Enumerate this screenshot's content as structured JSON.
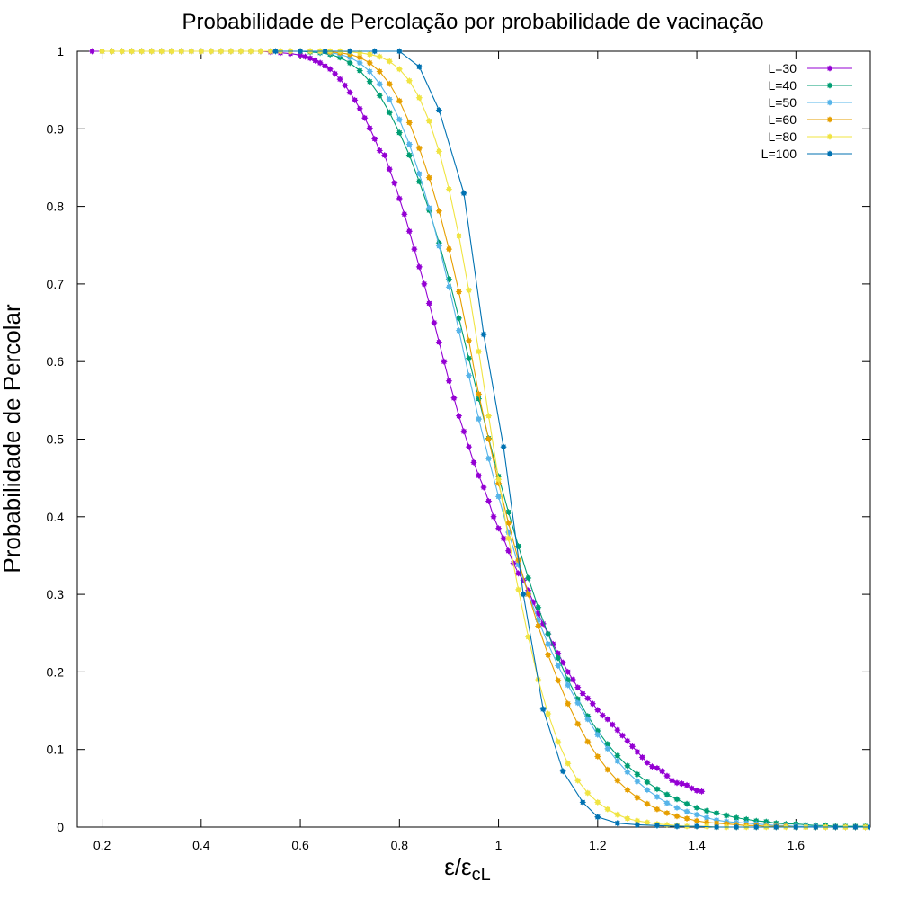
{
  "chart_data": {
    "type": "line",
    "title": "Probabilidade de Percolação por probabilidade de vacinação",
    "xlabel": "ε/ε",
    "xlabel_subscript": "cL",
    "ylabel": "Probabilidade de Percolar",
    "xlim": [
      0.15,
      1.75
    ],
    "ylim": [
      0,
      1
    ],
    "xticks": [
      "0.2",
      "0.4",
      "0.6",
      "0.8",
      "1",
      "1.2",
      "1.4",
      "1.6"
    ],
    "yticks": [
      "0",
      "0.1",
      "0.2",
      "0.3",
      "0.4",
      "0.5",
      "0.6",
      "0.7",
      "0.8",
      "0.9",
      "1"
    ],
    "grid": false,
    "legend_position": "top-right",
    "series": [
      {
        "name": "L=30",
        "color": "#9400d3",
        "x": [
          0.18,
          0.2,
          0.22,
          0.24,
          0.26,
          0.28,
          0.3,
          0.32,
          0.34,
          0.36,
          0.38,
          0.4,
          0.42,
          0.44,
          0.46,
          0.48,
          0.5,
          0.52,
          0.54,
          0.56,
          0.58,
          0.6,
          0.61,
          0.62,
          0.63,
          0.64,
          0.65,
          0.66,
          0.67,
          0.68,
          0.69,
          0.7,
          0.71,
          0.72,
          0.73,
          0.74,
          0.75,
          0.76,
          0.77,
          0.78,
          0.79,
          0.8,
          0.81,
          0.82,
          0.83,
          0.84,
          0.85,
          0.86,
          0.87,
          0.88,
          0.89,
          0.9,
          0.91,
          0.92,
          0.93,
          0.94,
          0.95,
          0.96,
          0.97,
          0.98,
          0.99,
          1.0,
          1.01,
          1.02,
          1.03,
          1.04,
          1.05,
          1.06,
          1.07,
          1.08,
          1.09,
          1.1,
          1.11,
          1.12,
          1.13,
          1.14,
          1.15,
          1.16,
          1.17,
          1.18,
          1.19,
          1.2,
          1.21,
          1.22,
          1.23,
          1.24,
          1.25,
          1.26,
          1.27,
          1.28,
          1.29,
          1.3,
          1.31,
          1.32,
          1.33,
          1.34,
          1.35,
          1.36,
          1.37,
          1.38,
          1.39,
          1.4,
          1.41
        ],
        "y": [
          1,
          1,
          1,
          1,
          1,
          1,
          1,
          1,
          1,
          1,
          1,
          1,
          1,
          1,
          1,
          1,
          1,
          1,
          0.999,
          0.998,
          0.997,
          0.995,
          0.993,
          0.991,
          0.988,
          0.985,
          0.981,
          0.977,
          0.971,
          0.964,
          0.956,
          0.947,
          0.937,
          0.926,
          0.914,
          0.901,
          0.887,
          0.872,
          0.866,
          0.848,
          0.83,
          0.81,
          0.79,
          0.768,
          0.745,
          0.722,
          0.7,
          0.675,
          0.65,
          0.625,
          0.6,
          0.575,
          0.553,
          0.53,
          0.51,
          0.49,
          0.47,
          0.453,
          0.438,
          0.42,
          0.4,
          0.385,
          0.372,
          0.356,
          0.34,
          0.327,
          0.318,
          0.305,
          0.29,
          0.275,
          0.262,
          0.249,
          0.236,
          0.224,
          0.212,
          0.2,
          0.19,
          0.18,
          0.172,
          0.166,
          0.159,
          0.151,
          0.144,
          0.139,
          0.132,
          0.125,
          0.118,
          0.111,
          0.104,
          0.097,
          0.09,
          0.083,
          0.078,
          0.076,
          0.072,
          0.066,
          0.06,
          0.057,
          0.056,
          0.054,
          0.05,
          0.047,
          0.046
        ]
      },
      {
        "name": "L=40",
        "color": "#009e73",
        "x": [
          0.2,
          0.22,
          0.24,
          0.26,
          0.28,
          0.3,
          0.32,
          0.34,
          0.36,
          0.38,
          0.4,
          0.42,
          0.44,
          0.46,
          0.48,
          0.5,
          0.52,
          0.54,
          0.56,
          0.58,
          0.6,
          0.62,
          0.64,
          0.66,
          0.68,
          0.7,
          0.72,
          0.74,
          0.76,
          0.78,
          0.8,
          0.82,
          0.84,
          0.86,
          0.88,
          0.9,
          0.92,
          0.94,
          0.96,
          0.98,
          1.0,
          1.02,
          1.04,
          1.06,
          1.08,
          1.1,
          1.12,
          1.14,
          1.16,
          1.18,
          1.2,
          1.22,
          1.24,
          1.26,
          1.28,
          1.3,
          1.32,
          1.34,
          1.36,
          1.38,
          1.4,
          1.42,
          1.44,
          1.46,
          1.48,
          1.5,
          1.52,
          1.54,
          1.56,
          1.58,
          1.6,
          1.62,
          1.64,
          1.66,
          1.68,
          1.7,
          1.72,
          1.74
        ],
        "y": [
          1,
          1,
          1,
          1,
          1,
          1,
          1,
          1,
          1,
          1,
          1,
          1,
          1,
          1,
          1,
          1,
          1,
          1,
          1,
          1,
          1,
          0.999,
          0.998,
          0.996,
          0.992,
          0.985,
          0.975,
          0.961,
          0.943,
          0.921,
          0.895,
          0.866,
          0.832,
          0.795,
          0.753,
          0.706,
          0.656,
          0.604,
          0.552,
          0.501,
          0.452,
          0.406,
          0.362,
          0.321,
          0.283,
          0.249,
          0.218,
          0.19,
          0.165,
          0.143,
          0.124,
          0.107,
          0.092,
          0.079,
          0.068,
          0.058,
          0.049,
          0.042,
          0.036,
          0.03,
          0.025,
          0.021,
          0.018,
          0.015,
          0.012,
          0.01,
          0.008,
          0.007,
          0.005,
          0.004,
          0.004,
          0.003,
          0.002,
          0.002,
          0.001,
          0.001,
          0.001,
          0.001
        ]
      },
      {
        "name": "L=50",
        "color": "#56b4e9",
        "x": [
          0.2,
          0.22,
          0.24,
          0.26,
          0.28,
          0.3,
          0.32,
          0.34,
          0.36,
          0.38,
          0.4,
          0.42,
          0.44,
          0.46,
          0.48,
          0.5,
          0.52,
          0.54,
          0.56,
          0.58,
          0.6,
          0.62,
          0.64,
          0.66,
          0.68,
          0.7,
          0.72,
          0.74,
          0.76,
          0.78,
          0.8,
          0.82,
          0.84,
          0.86,
          0.88,
          0.9,
          0.92,
          0.94,
          0.96,
          0.98,
          1.0,
          1.02,
          1.04,
          1.06,
          1.08,
          1.1,
          1.12,
          1.14,
          1.16,
          1.18,
          1.2,
          1.22,
          1.24,
          1.26,
          1.28,
          1.3,
          1.32,
          1.34,
          1.36,
          1.38,
          1.4,
          1.42,
          1.44,
          1.46,
          1.48,
          1.5,
          1.52,
          1.54,
          1.56,
          1.58,
          1.6,
          1.62,
          1.64,
          1.66,
          1.68,
          1.7,
          1.72,
          1.74
        ],
        "y": [
          1,
          1,
          1,
          1,
          1,
          1,
          1,
          1,
          1,
          1,
          1,
          1,
          1,
          1,
          1,
          1,
          1,
          1,
          1,
          1,
          1,
          1,
          0.999,
          0.998,
          0.996,
          0.992,
          0.985,
          0.974,
          0.958,
          0.938,
          0.912,
          0.88,
          0.842,
          0.798,
          0.749,
          0.696,
          0.64,
          0.582,
          0.526,
          0.475,
          0.426,
          0.38,
          0.338,
          0.301,
          0.267,
          0.236,
          0.208,
          0.183,
          0.16,
          0.139,
          0.119,
          0.101,
          0.085,
          0.071,
          0.059,
          0.048,
          0.039,
          0.031,
          0.025,
          0.02,
          0.016,
          0.012,
          0.009,
          0.007,
          0.006,
          0.005,
          0.004,
          0.003,
          0.002,
          0.002,
          0.001,
          0.001,
          0.001,
          0,
          0,
          0,
          0,
          0
        ]
      },
      {
        "name": "L=60",
        "color": "#e69f00",
        "x": [
          0.2,
          0.22,
          0.24,
          0.26,
          0.28,
          0.3,
          0.32,
          0.34,
          0.36,
          0.38,
          0.4,
          0.42,
          0.44,
          0.46,
          0.48,
          0.5,
          0.52,
          0.54,
          0.56,
          0.58,
          0.6,
          0.62,
          0.64,
          0.66,
          0.68,
          0.7,
          0.72,
          0.74,
          0.76,
          0.78,
          0.8,
          0.82,
          0.84,
          0.86,
          0.88,
          0.9,
          0.92,
          0.94,
          0.96,
          0.98,
          1.0,
          1.02,
          1.04,
          1.06,
          1.08,
          1.1,
          1.12,
          1.14,
          1.16,
          1.18,
          1.2,
          1.22,
          1.24,
          1.26,
          1.28,
          1.3,
          1.32,
          1.34,
          1.36,
          1.38,
          1.4,
          1.42,
          1.44,
          1.46,
          1.48,
          1.5,
          1.52,
          1.54,
          1.56,
          1.58,
          1.6,
          1.62,
          1.64,
          1.66,
          1.68,
          1.7,
          1.72,
          1.74
        ],
        "y": [
          1,
          1,
          1,
          1,
          1,
          1,
          1,
          1,
          1,
          1,
          1,
          1,
          1,
          1,
          1,
          1,
          1,
          1,
          1,
          1,
          1,
          1,
          1,
          0.999,
          0.998,
          0.996,
          0.992,
          0.985,
          0.974,
          0.958,
          0.936,
          0.908,
          0.875,
          0.837,
          0.794,
          0.745,
          0.69,
          0.627,
          0.558,
          0.5,
          0.443,
          0.392,
          0.344,
          0.3,
          0.259,
          0.222,
          0.189,
          0.159,
          0.133,
          0.11,
          0.091,
          0.074,
          0.06,
          0.048,
          0.038,
          0.03,
          0.023,
          0.018,
          0.014,
          0.011,
          0.008,
          0.006,
          0.005,
          0.004,
          0.003,
          0.002,
          0.002,
          0.001,
          0.001,
          0.001,
          0,
          0,
          0,
          0,
          0,
          0,
          0,
          0
        ]
      },
      {
        "name": "L=80",
        "color": "#f0e442",
        "x": [
          0.2,
          0.22,
          0.24,
          0.26,
          0.28,
          0.3,
          0.32,
          0.34,
          0.36,
          0.38,
          0.4,
          0.42,
          0.44,
          0.46,
          0.48,
          0.5,
          0.52,
          0.54,
          0.56,
          0.58,
          0.6,
          0.62,
          0.64,
          0.66,
          0.68,
          0.7,
          0.72,
          0.74,
          0.76,
          0.78,
          0.8,
          0.82,
          0.84,
          0.86,
          0.88,
          0.9,
          0.92,
          0.94,
          0.96,
          0.98,
          1.0,
          1.02,
          1.04,
          1.06,
          1.08,
          1.1,
          1.12,
          1.14,
          1.16,
          1.18,
          1.2,
          1.22,
          1.24,
          1.26,
          1.28,
          1.3,
          1.32,
          1.34,
          1.36,
          1.38,
          1.4,
          1.42,
          1.44,
          1.46,
          1.48,
          1.5,
          1.52,
          1.54,
          1.56,
          1.58,
          1.6,
          1.62,
          1.64,
          1.66,
          1.68,
          1.7,
          1.72,
          1.74
        ],
        "y": [
          1,
          1,
          1,
          1,
          1,
          1,
          1,
          1,
          1,
          1,
          1,
          1,
          1,
          1,
          1,
          1,
          1,
          1,
          1,
          1,
          1,
          1,
          1,
          1,
          1,
          0.999,
          0.998,
          0.996,
          0.993,
          0.987,
          0.977,
          0.962,
          0.94,
          0.91,
          0.871,
          0.822,
          0.762,
          0.692,
          0.613,
          0.53,
          0.448,
          0.372,
          0.306,
          0.245,
          0.19,
          0.146,
          0.11,
          0.082,
          0.06,
          0.044,
          0.032,
          0.023,
          0.016,
          0.011,
          0.008,
          0.006,
          0.004,
          0.003,
          0.002,
          0.001,
          0.001,
          0.001,
          0,
          0,
          0,
          0,
          0,
          0,
          0,
          0,
          0,
          0,
          0,
          0,
          0,
          0,
          0,
          0
        ]
      },
      {
        "name": "L=100",
        "color": "#0072b2",
        "x": [
          0.55,
          0.6,
          0.65,
          0.7,
          0.75,
          0.8,
          0.84,
          0.88,
          0.93,
          0.97,
          1.01,
          1.05,
          1.09,
          1.13,
          1.17,
          1.2,
          1.24,
          1.28,
          1.32,
          1.36,
          1.4,
          1.44,
          1.48,
          1.52,
          1.56,
          1.6,
          1.64,
          1.68,
          1.72,
          1.75
        ],
        "y": [
          1,
          1,
          1,
          1,
          1,
          1,
          0.98,
          0.924,
          0.817,
          0.635,
          0.49,
          0.3,
          0.152,
          0.072,
          0.032,
          0.013,
          0.005,
          0.003,
          0.002,
          0.001,
          0.001,
          0,
          0,
          0,
          0,
          0,
          0,
          0,
          0,
          0
        ]
      }
    ]
  }
}
